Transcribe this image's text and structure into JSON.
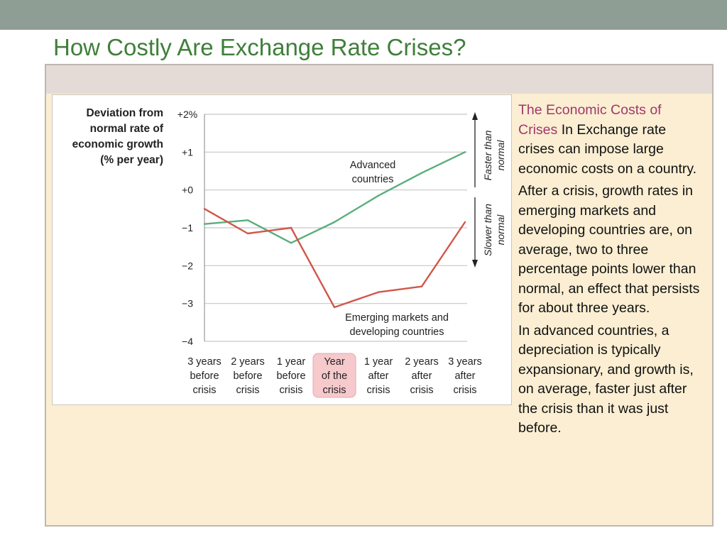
{
  "slide": {
    "title": "How Costly Are Exchange Rate Crises?"
  },
  "sidebar": {
    "heading": "The Economic Costs of Crises",
    "intro": "In Exchange rate crises can impose large economic costs on a country.",
    "paragraphs": [
      "After a crisis, growth rates in emerging markets and developing countries are, on average, two to three percentage points lower than normal, an effect that persists for about three years.",
      "In advanced countries, a depreciation is typically expansionary, and growth is, on average, faster just after the crisis than it was just before."
    ]
  },
  "colors": {
    "title": "#3f7f3a",
    "heading": "#a0386c",
    "advanced": "#5aae7c",
    "emerging": "#d0574b",
    "highlight": "#f6c9cc"
  },
  "chart_data": {
    "type": "line",
    "ylabel_lines": [
      "Deviation from",
      "normal rate of",
      "economic growth",
      "(% per year)"
    ],
    "ylim": [
      -4,
      2
    ],
    "yticks": [
      {
        "value": 2,
        "label": "+2%"
      },
      {
        "value": 1,
        "label": "+1"
      },
      {
        "value": 0,
        "label": "+0"
      },
      {
        "value": -1,
        "label": "−1"
      },
      {
        "value": -2,
        "label": "−2"
      },
      {
        "value": -3,
        "label": "−3"
      },
      {
        "value": -4,
        "label": "−4"
      }
    ],
    "categories": [
      [
        "3 years",
        "before",
        "crisis"
      ],
      [
        "2 years",
        "before",
        "crisis"
      ],
      [
        "1 year",
        "before",
        "crisis"
      ],
      [
        "Year",
        "of the",
        "crisis"
      ],
      [
        "1 year",
        "after",
        "crisis"
      ],
      [
        "2 years",
        "after",
        "crisis"
      ],
      [
        "3 years",
        "after",
        "crisis"
      ]
    ],
    "highlight_category": 3,
    "grid": "horizontal",
    "series": [
      {
        "name_lines": [
          "Advanced",
          "countries"
        ],
        "color": "#5aae7c",
        "values": [
          -0.9,
          -0.8,
          -1.4,
          -0.85,
          -0.15,
          0.45,
          1.0
        ]
      },
      {
        "name_lines": [
          "Emerging markets and",
          "developing countries"
        ],
        "color": "#d0574b",
        "values": [
          -0.5,
          -1.15,
          -1.0,
          -3.1,
          -2.7,
          -2.55,
          -0.85
        ]
      }
    ],
    "annotations": {
      "faster": [
        "Faster than",
        "normal"
      ],
      "slower": [
        "Slower than",
        "normal"
      ]
    }
  }
}
